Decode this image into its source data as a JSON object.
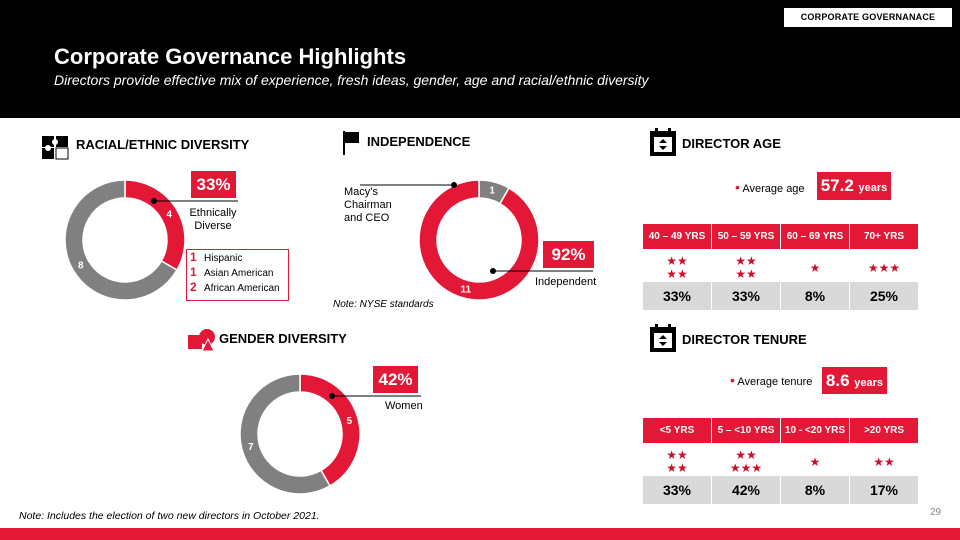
{
  "header": {
    "tag": "CORPORATE GOVERNANACE",
    "title": "Corporate Governance Highlights",
    "subtitle": "Directors provide effective mix of experience, fresh ideas, gender, age and racial/ethnic diversity"
  },
  "racial": {
    "title": "RACIAL/ETHNIC DIVERSITY",
    "pct": "33%",
    "callout": "Ethnically Diverse",
    "values": [
      4,
      8
    ],
    "labels": [
      "4",
      "8"
    ],
    "legend": [
      {
        "count": "1",
        "label": "Hispanic"
      },
      {
        "count": "1",
        "label": "Asian American"
      },
      {
        "count": "2",
        "label": "African American"
      }
    ]
  },
  "independence": {
    "title": "INDEPENDENCE",
    "pct": "92%",
    "callout_left": "Macy’s Chairman and CEO",
    "callout_right": "Independent",
    "values": [
      1,
      11
    ],
    "labels": [
      "1",
      "11"
    ],
    "note": "Note: NYSE standards"
  },
  "gender": {
    "title": "GENDER DIVERSITY",
    "pct": "42%",
    "callout": "Women",
    "values": [
      5,
      7
    ],
    "labels": [
      "5",
      "7"
    ]
  },
  "age": {
    "title": "DIRECTOR AGE",
    "avg_label": "Average age",
    "avg_value": "57.2",
    "avg_unit": "years",
    "columns": [
      {
        "header": "40 – 49 YRS",
        "stars": 4,
        "value": "33%"
      },
      {
        "header": "50 – 59 YRS",
        "stars": 4,
        "value": "33%"
      },
      {
        "header": "60 – 69 YRS",
        "stars": 1,
        "value": "8%"
      },
      {
        "header": "70+ YRS",
        "stars": 3,
        "value": "25%"
      }
    ]
  },
  "tenure": {
    "title": "DIRECTOR TENURE",
    "avg_label": "Average tenure",
    "avg_value": "8.6",
    "avg_unit": "years",
    "columns": [
      {
        "header": "<5 YRS",
        "stars": 4,
        "value": "33%"
      },
      {
        "header": "5 – <10 YRS",
        "stars": 5,
        "value": "42%"
      },
      {
        "header": "10 - <20 YRS",
        "stars": 1,
        "value": "8%"
      },
      {
        "header": ">20 YRS",
        "stars": 2,
        "value": "17%"
      }
    ]
  },
  "footer": {
    "note": "Note: Includes the election of two new directors in October 2021.",
    "page": "29"
  },
  "colors": {
    "accent": "#e31837",
    "grey": "#808080",
    "light": "#d9d9d9"
  }
}
